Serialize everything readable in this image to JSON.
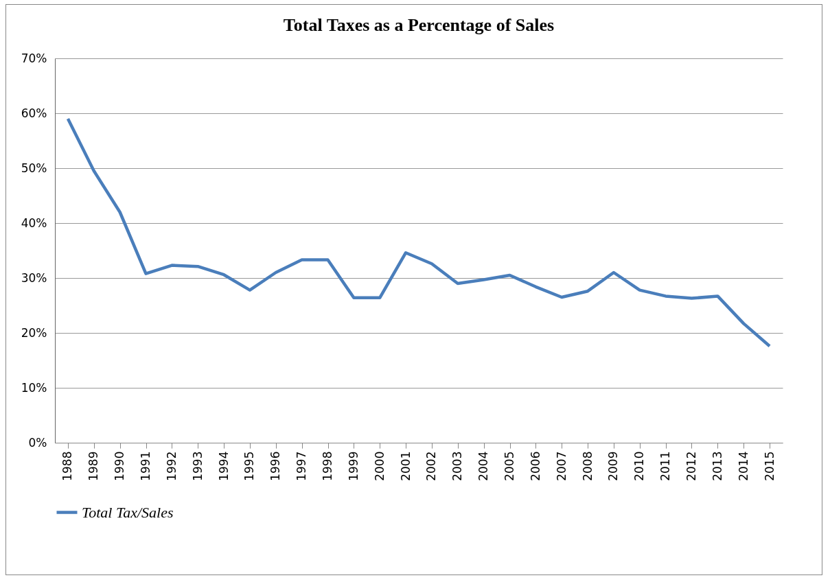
{
  "chart_data": {
    "type": "line",
    "title": "Total Taxes as a Percentage of Sales",
    "categories": [
      "1988",
      "1989",
      "1990",
      "1991",
      "1992",
      "1993",
      "1994",
      "1995",
      "1996",
      "1997",
      "1998",
      "1999",
      "2000",
      "2001",
      "2002",
      "2003",
      "2004",
      "2005",
      "2006",
      "2007",
      "2008",
      "2009",
      "2010",
      "2011",
      "2012",
      "2013",
      "2014",
      "2015"
    ],
    "series": [
      {
        "name": "Total Tax/Sales",
        "color": "#4a7ebb",
        "values": [
          59,
          49.5,
          42,
          30.8,
          32.3,
          32.1,
          30.6,
          27.8,
          31,
          33.3,
          33.3,
          26.4,
          26.4,
          34.6,
          32.6,
          29,
          29.7,
          30.5,
          28.4,
          26.5,
          27.6,
          31,
          27.8,
          26.7,
          26.3,
          26.7,
          21.7,
          17.6
        ]
      }
    ],
    "ylim": [
      0,
      70
    ],
    "yticks": [
      {
        "value": 0,
        "label": "0%"
      },
      {
        "value": 10,
        "label": "10%"
      },
      {
        "value": 20,
        "label": "20%"
      },
      {
        "value": 30,
        "label": "30%"
      },
      {
        "value": 40,
        "label": "40%"
      },
      {
        "value": 50,
        "label": "50%"
      },
      {
        "value": 60,
        "label": "60%"
      },
      {
        "value": 70,
        "label": "70%"
      }
    ],
    "grid": "y",
    "legend": "bottom",
    "marker": "none",
    "line_style": "solid"
  }
}
